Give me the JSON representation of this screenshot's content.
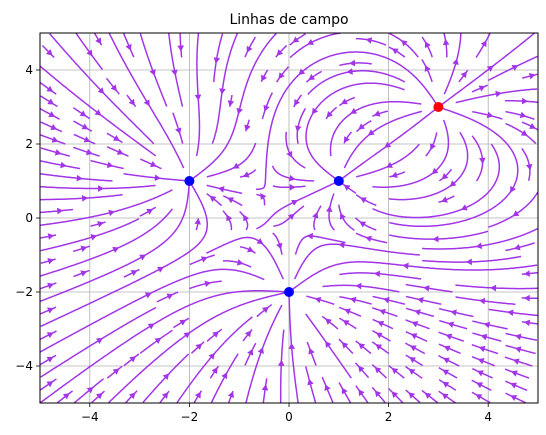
{
  "chart_data": {
    "type": "streamplot",
    "title": "Linhas de campo",
    "xlabel": "",
    "ylabel": "",
    "xlim": [
      -5,
      5
    ],
    "ylim": [
      -5,
      5
    ],
    "x_ticks": [
      -4,
      -2,
      0,
      2,
      4
    ],
    "y_ticks": [
      -4,
      -2,
      0,
      2,
      4
    ],
    "grid": true,
    "line_color": "#a335e8",
    "charges": [
      {
        "x": -2,
        "y": 1,
        "sign": "negative",
        "color": "#0000ff"
      },
      {
        "x": 1,
        "y": 1,
        "sign": "negative",
        "color": "#0000ff"
      },
      {
        "x": 0,
        "y": -2,
        "sign": "negative",
        "color": "#0000ff"
      },
      {
        "x": 3,
        "y": 3,
        "sign": "positive",
        "color": "#ff0000"
      }
    ]
  }
}
